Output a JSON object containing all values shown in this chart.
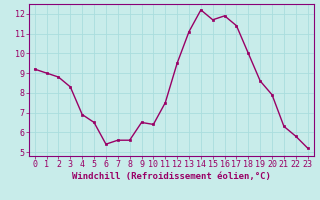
{
  "x": [
    0,
    1,
    2,
    3,
    4,
    5,
    6,
    7,
    8,
    9,
    10,
    11,
    12,
    13,
    14,
    15,
    16,
    17,
    18,
    19,
    20,
    21,
    22,
    23
  ],
  "y": [
    9.2,
    9.0,
    8.8,
    8.3,
    6.9,
    6.5,
    5.4,
    5.6,
    5.6,
    6.5,
    6.4,
    7.5,
    9.5,
    11.1,
    12.2,
    11.7,
    11.9,
    11.4,
    10.0,
    8.6,
    7.9,
    6.3,
    5.8,
    5.2
  ],
  "line_color": "#990066",
  "marker": "s",
  "marker_size": 2.0,
  "bg_color": "#c8ecea",
  "grid_color": "#aadddd",
  "xlabel": "Windchill (Refroidissement éolien,°C)",
  "xlabel_color": "#990066",
  "tick_color": "#990066",
  "ylim": [
    4.8,
    12.5
  ],
  "xlim": [
    -0.5,
    23.5
  ],
  "yticks": [
    5,
    6,
    7,
    8,
    9,
    10,
    11,
    12
  ],
  "xticks": [
    0,
    1,
    2,
    3,
    4,
    5,
    6,
    7,
    8,
    9,
    10,
    11,
    12,
    13,
    14,
    15,
    16,
    17,
    18,
    19,
    20,
    21,
    22,
    23
  ],
  "spine_color": "#880077",
  "line_width": 1.0,
  "tick_font_size": 6.0,
  "xlabel_font_size": 6.5
}
